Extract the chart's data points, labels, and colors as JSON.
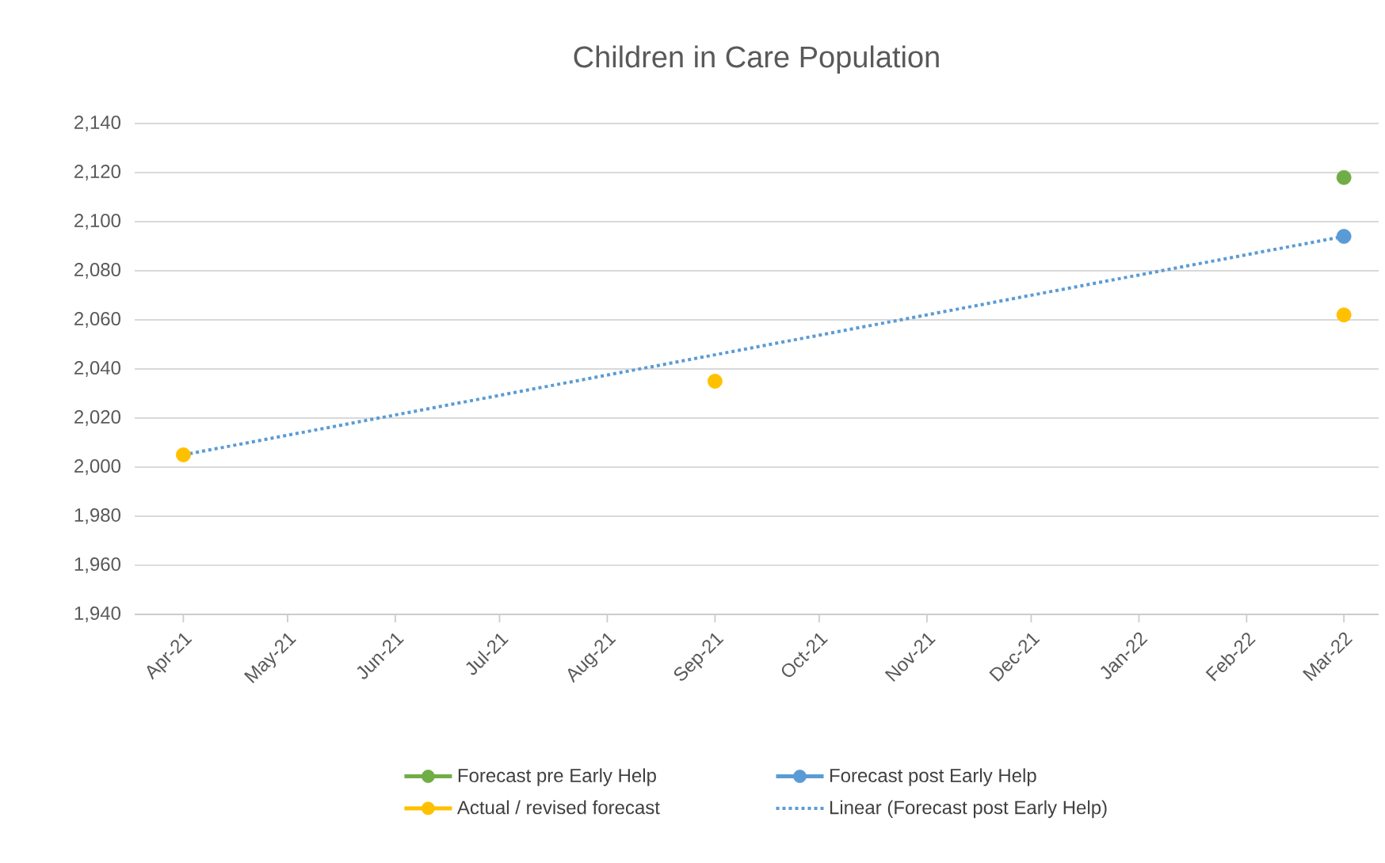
{
  "chart_data": {
    "type": "scatter",
    "title": "Children in Care Population",
    "xlim": [
      "2021-03-18",
      "2022-03-11"
    ],
    "xticks": [
      {
        "value": "2021-04",
        "label": "Apr-21"
      },
      {
        "value": "2021-05",
        "label": "May-21"
      },
      {
        "value": "2021-06",
        "label": "Jun-21"
      },
      {
        "value": "2021-07",
        "label": "Jul-21"
      },
      {
        "value": "2021-08",
        "label": "Aug-21"
      },
      {
        "value": "2021-09",
        "label": "Sep-21"
      },
      {
        "value": "2021-10",
        "label": "Oct-21"
      },
      {
        "value": "2021-11",
        "label": "Nov-21"
      },
      {
        "value": "2021-12",
        "label": "Dec-21"
      },
      {
        "value": "2022-01",
        "label": "Jan-22"
      },
      {
        "value": "2022-02",
        "label": "Feb-22"
      },
      {
        "value": "2022-03",
        "label": "Mar-22"
      }
    ],
    "ylim": [
      1940,
      2140
    ],
    "yticks": [
      {
        "value": 1940,
        "label": "1,940"
      },
      {
        "value": 1960,
        "label": "1,960"
      },
      {
        "value": 1980,
        "label": "1,980"
      },
      {
        "value": 2000,
        "label": "2,000"
      },
      {
        "value": 2020,
        "label": "2,020"
      },
      {
        "value": 2040,
        "label": "2,040"
      },
      {
        "value": 2060,
        "label": "2,060"
      },
      {
        "value": 2080,
        "label": "2,080"
      },
      {
        "value": 2100,
        "label": "2,100"
      },
      {
        "value": 2120,
        "label": "2,120"
      },
      {
        "value": 2140,
        "label": "2,140"
      }
    ],
    "grid": "y",
    "legend": "bottom",
    "marker": "circle",
    "series": [
      {
        "name": "Forecast pre Early Help",
        "color": "#70ad47",
        "x": [
          "2022-03"
        ],
        "values": [
          2118
        ]
      },
      {
        "name": "Forecast post Early Help",
        "color": "#5b9bd5",
        "x": [
          "2022-03"
        ],
        "values": [
          2094
        ]
      },
      {
        "name": "Actual / revised forecast",
        "color": "#ffc000",
        "x": [
          "2021-04",
          "2021-09",
          "2022-03"
        ],
        "values": [
          2005,
          2035,
          2062
        ]
      },
      {
        "name": "Linear (Forecast post Early Help)",
        "type": "line",
        "color": "#5b9bd5",
        "marker": "none",
        "line_style": "dotted",
        "x": [
          "2021-04",
          "2022-03"
        ],
        "values": [
          2005,
          2094
        ]
      }
    ]
  }
}
